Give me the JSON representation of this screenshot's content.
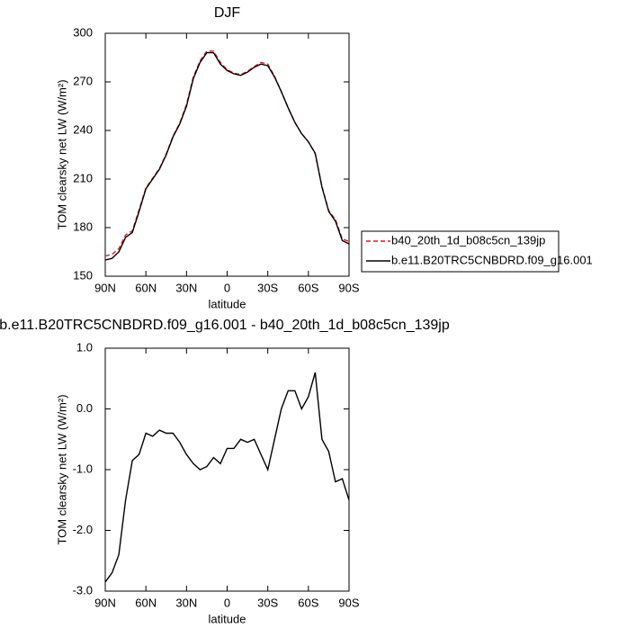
{
  "chart_data": [
    {
      "type": "line",
      "title": "DJF",
      "x_label": "latitude",
      "y_label": "TOM clearsky net LW (W/m²)",
      "x": [
        90,
        85,
        80,
        75,
        70,
        65,
        60,
        55,
        50,
        45,
        40,
        35,
        30,
        25,
        20,
        15,
        10,
        5,
        0,
        -5,
        -10,
        -15,
        -20,
        -25,
        -30,
        -35,
        -40,
        -45,
        -50,
        -55,
        -60,
        -65,
        -70,
        -75,
        -80,
        -85,
        -90
      ],
      "series": [
        {
          "name": "b40_20th_1d_b08c5cn_139jp",
          "color": "#e31a1c",
          "linestyle": "dashed",
          "values": [
            162.5,
            163.5,
            167,
            175.5,
            178,
            191,
            204.5,
            210.5,
            216.5,
            225.5,
            236.5,
            244.5,
            256,
            273,
            283,
            289,
            289,
            282,
            277.5,
            275.5,
            274.5,
            276.5,
            279.5,
            282,
            281,
            273.5,
            264,
            254,
            245,
            238,
            233,
            225.5,
            205.5,
            190.5,
            185,
            173,
            171.5
          ]
        },
        {
          "name": "b.e11.B20TRC5CNBDRD.f09_g16.001",
          "color": "#000000",
          "linestyle": "solid",
          "values": [
            160,
            161,
            165,
            174,
            177,
            190,
            204,
            210,
            216,
            225,
            236,
            244,
            255,
            272,
            282,
            288,
            288,
            281,
            277,
            275,
            274,
            276,
            279,
            281,
            280,
            273,
            264,
            254,
            245,
            238,
            233,
            226,
            205,
            190,
            184,
            172,
            170
          ]
        }
      ],
      "xlim": [
        90,
        -90
      ],
      "xticks": [
        {
          "value": 90,
          "label": "90N"
        },
        {
          "value": 60,
          "label": "60N"
        },
        {
          "value": 30,
          "label": "30N"
        },
        0,
        {
          "value": -30,
          "label": "30S"
        },
        {
          "value": -60,
          "label": "60S"
        },
        {
          "value": -90,
          "label": "90S"
        }
      ],
      "ylim": [
        150,
        300
      ],
      "yticks": [
        150,
        180,
        210,
        240,
        270,
        300
      ],
      "legend": "right"
    },
    {
      "type": "line",
      "title": "b.e11.B20TRC5CNBDRD.f09_g16.001 - b40_20th_1d_b08c5cn_139jp",
      "x_label": "latitude",
      "y_label": "TOM clearsky net LW (W/m²)",
      "x": [
        90,
        85,
        80,
        75,
        70,
        65,
        60,
        55,
        50,
        45,
        40,
        35,
        30,
        25,
        20,
        15,
        10,
        5,
        0,
        -5,
        -10,
        -15,
        -20,
        -25,
        -30,
        -35,
        -40,
        -45,
        -50,
        -55,
        -60,
        -65,
        -70,
        -75,
        -80,
        -85,
        -90
      ],
      "color": "#000000",
      "values": [
        -2.85,
        -2.7,
        -2.4,
        -1.5,
        -0.85,
        -0.75,
        -0.4,
        -0.45,
        -0.35,
        -0.4,
        -0.4,
        -0.55,
        -0.75,
        -0.9,
        -1.0,
        -0.95,
        -0.8,
        -0.9,
        -0.65,
        -0.65,
        -0.5,
        -0.55,
        -0.5,
        -0.75,
        -1.0,
        -0.5,
        0.0,
        0.3,
        0.3,
        0.0,
        0.2,
        0.6,
        -0.5,
        -0.7,
        -1.2,
        -1.15,
        -1.5
      ],
      "xlim": [
        90,
        -90
      ],
      "xticks": [
        {
          "value": 90,
          "label": "90N"
        },
        {
          "value": 60,
          "label": "60N"
        },
        {
          "value": 30,
          "label": "30N"
        },
        0,
        {
          "value": -30,
          "label": "30S"
        },
        {
          "value": -60,
          "label": "60S"
        },
        {
          "value": -90,
          "label": "90S"
        }
      ],
      "ylim": [
        -3,
        1
      ],
      "yticks": [
        {
          "value": -3,
          "label": "-3.0"
        },
        {
          "value": -2,
          "label": "-2.0"
        },
        {
          "value": -1,
          "label": "-1.0"
        },
        {
          "value": 0,
          "label": "0.0"
        },
        {
          "value": 1,
          "label": "1.0"
        }
      ]
    }
  ]
}
